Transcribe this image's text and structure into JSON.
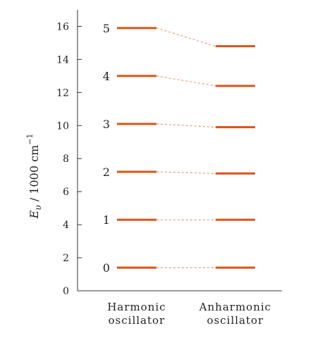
{
  "chart_data": {
    "type": "energy-level-diagram",
    "ylabel_main": "E",
    "ylabel_sub": "υ",
    "ylabel_rest": " / 1000 cm",
    "ylabel_sup": "−1",
    "ylim": [
      0,
      17
    ],
    "yticks": [
      0,
      2,
      4,
      6,
      8,
      10,
      12,
      14,
      16
    ],
    "categories": [
      "Harmonic|oscillator",
      "Anharmonic|oscillator"
    ],
    "level_labels": [
      "0",
      "1",
      "2",
      "3",
      "4",
      "5"
    ],
    "harmonic_levels": [
      1.4,
      4.3,
      7.2,
      10.1,
      13.0,
      15.9
    ],
    "anharmonic_levels": [
      1.4,
      4.3,
      7.1,
      9.9,
      12.4,
      14.8
    ],
    "colors": {
      "level": "#d9541a",
      "connector": "#e58a5a",
      "axis": "#333333"
    }
  }
}
